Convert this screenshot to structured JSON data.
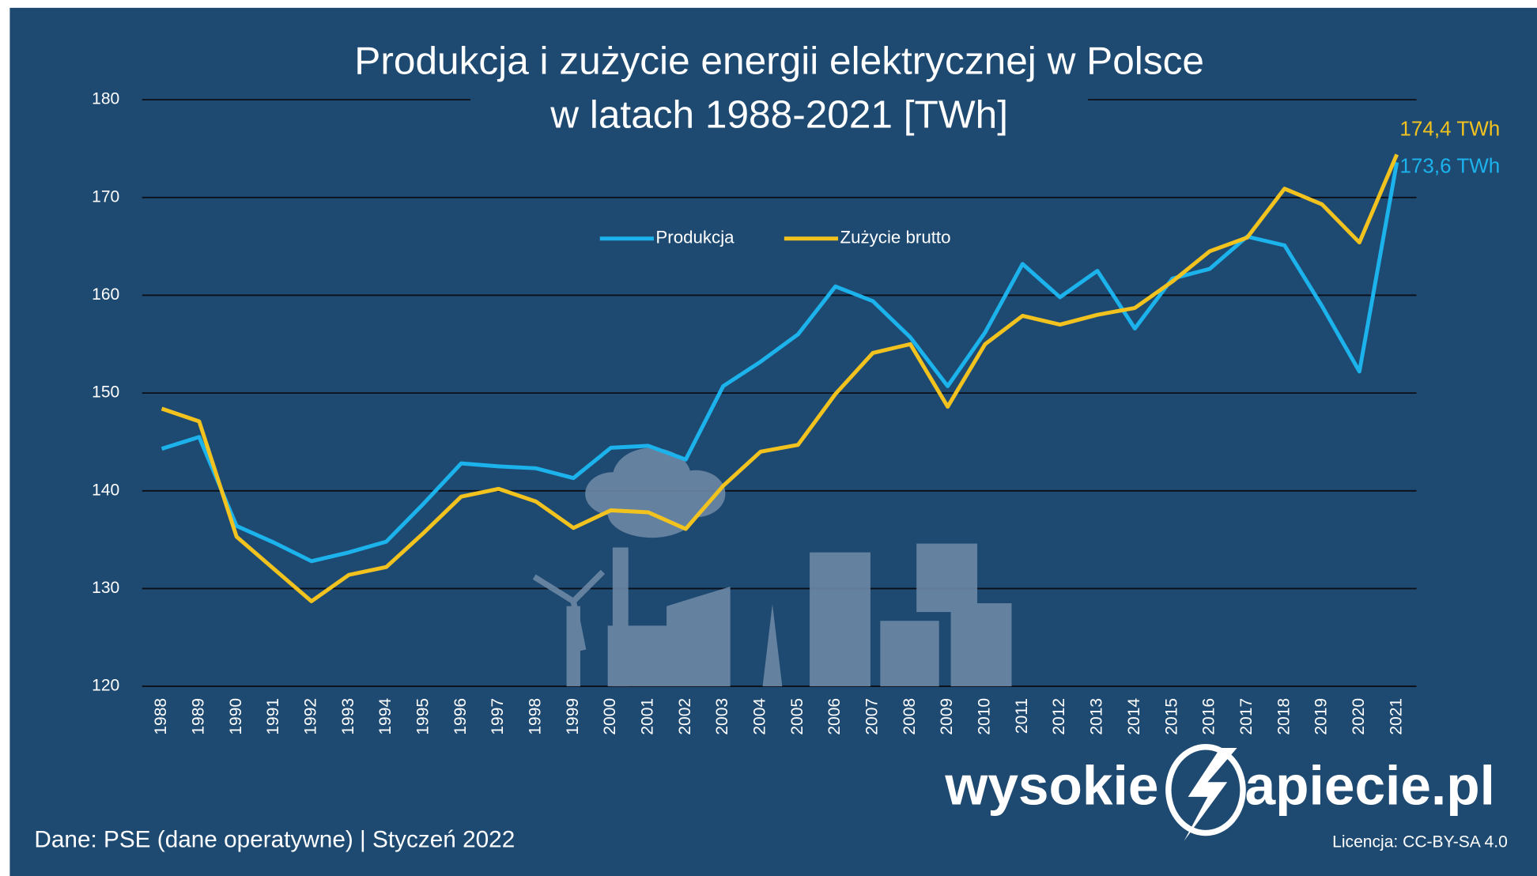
{
  "chart_data": {
    "type": "line",
    "title": "Produkcja i zużycie energii elektrycznej w Polsce",
    "subtitle": "w latach 1988-2021 [TWh]",
    "categories": [
      "1988",
      "1989",
      "1990",
      "1991",
      "1992",
      "1993",
      "1994",
      "1995",
      "1996",
      "1997",
      "1998",
      "1999",
      "2000",
      "2001",
      "2002",
      "2003",
      "2004",
      "2005",
      "2006",
      "2007",
      "2008",
      "2009",
      "2010",
      "2011",
      "2012",
      "2013",
      "2014",
      "2015",
      "2016",
      "2017",
      "2018",
      "2019",
      "2020",
      "2021"
    ],
    "series": [
      {
        "name": "Produkcja",
        "color": "#1cb3ec",
        "end_label": "173,6 TWh",
        "values": [
          144.3,
          145.5,
          136.4,
          134.7,
          132.8,
          133.7,
          134.8,
          138.7,
          142.8,
          142.5,
          142.3,
          141.3,
          144.4,
          144.6,
          143.2,
          150.7,
          153.2,
          156.0,
          160.9,
          159.4,
          155.7,
          150.7,
          156.2,
          163.2,
          159.8,
          162.5,
          156.6,
          161.7,
          162.7,
          166.0,
          165.1,
          158.9,
          152.2,
          173.6
        ]
      },
      {
        "name": "Zużycie brutto",
        "color": "#f2c31f",
        "end_label": "174,4 TWh",
        "values": [
          148.4,
          147.1,
          135.3,
          132.0,
          128.7,
          131.4,
          132.2,
          135.7,
          139.4,
          140.2,
          138.9,
          136.2,
          138.0,
          137.8,
          136.1,
          140.5,
          144.0,
          144.7,
          149.9,
          154.1,
          155.0,
          148.6,
          155.0,
          157.9,
          157.0,
          158.0,
          158.7,
          161.4,
          164.5,
          165.9,
          170.9,
          169.3,
          165.4,
          174.4
        ]
      }
    ],
    "ylim": [
      120,
      180
    ],
    "yticks": [
      120,
      130,
      140,
      150,
      160,
      170,
      180
    ],
    "grid": true,
    "source": "Dane: PSE (dane operatywne)  |  Styczeń 2022",
    "logo_left": "wysokie",
    "logo_right": "apiecie.pl",
    "license": "Licencja: CC-BY-SA 4.0"
  }
}
